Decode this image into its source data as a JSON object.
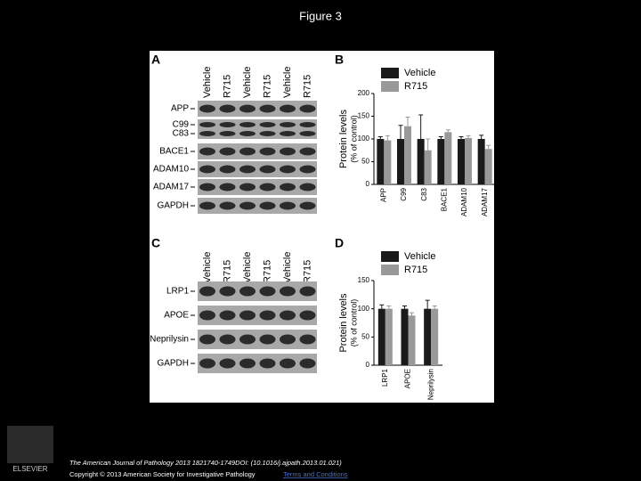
{
  "title": "Figure 3",
  "blots": [
    {
      "panel": "A",
      "lanes": [
        "Vehicle",
        "R715",
        "Vehicle",
        "R715",
        "Vehicle",
        "R715"
      ],
      "rows": [
        "APP",
        "C99",
        "C83",
        "BACE1",
        "ADAM10",
        "ADAM17",
        "GAPDH"
      ]
    },
    {
      "panel": "C",
      "lanes": [
        "Vehicle",
        "R715",
        "Vehicle",
        "R715",
        "Vehicle",
        "R715"
      ],
      "rows": [
        "LRP1",
        "APOE",
        "Neprilysin",
        "GAPDH"
      ]
    }
  ],
  "chart_data": [
    {
      "type": "bar",
      "panel": "B",
      "ylabel": "Protein levels",
      "ylabel_sub": "(% of control)",
      "categories": [
        "APP",
        "C99",
        "C83",
        "BACE1",
        "ADAM10",
        "ADAM17"
      ],
      "series": [
        {
          "name": "Vehicle",
          "color": "#1a1a1a",
          "values": [
            100,
            100,
            100,
            100,
            100,
            100
          ],
          "errors": [
            5,
            30,
            53,
            5,
            5,
            8
          ]
        },
        {
          "name": "R715",
          "color": "#999999",
          "values": [
            97,
            128,
            75,
            115,
            102,
            78
          ],
          "errors": [
            10,
            20,
            25,
            5,
            5,
            8
          ]
        }
      ],
      "ylim": [
        0,
        200
      ],
      "yticks": [
        0,
        50,
        100,
        150,
        200
      ]
    },
    {
      "type": "bar",
      "panel": "D",
      "ylabel": "Protein levels",
      "ylabel_sub": "(% of control)",
      "categories": [
        "LRP1",
        "APOE",
        "Neprilysin"
      ],
      "series": [
        {
          "name": "Vehicle",
          "color": "#1a1a1a",
          "values": [
            100,
            100,
            100
          ],
          "errors": [
            7,
            5,
            15
          ]
        },
        {
          "name": "R715",
          "color": "#999999",
          "values": [
            100,
            88,
            100
          ],
          "errors": [
            5,
            5,
            5
          ]
        }
      ],
      "ylim": [
        0,
        150
      ],
      "yticks": [
        0,
        50,
        100,
        150
      ]
    }
  ],
  "footer": {
    "logo": "ELSEVIER",
    "citation": "The American Journal of Pathology 2013 1821740-1749DOI: (10.1016/j.ajpath.2013.01.021)",
    "copyright": "Copyright © 2013 American Society for Investigative Pathology",
    "link": "Terms and Conditions"
  }
}
